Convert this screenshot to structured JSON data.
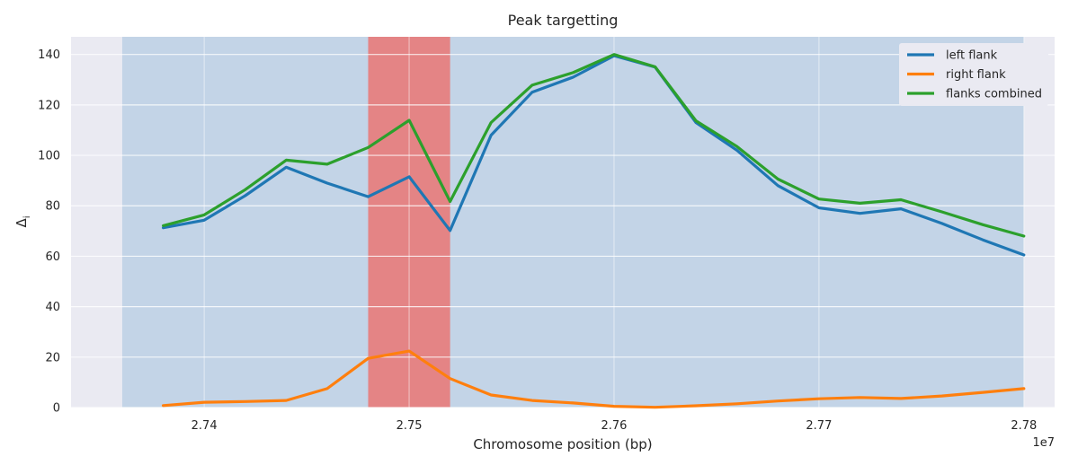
{
  "chart_data": {
    "type": "line",
    "title": "Peak targetting",
    "xlabel": "Chromosome position (bp)",
    "ylabel": "Δ",
    "ylabel_subscript": "i",
    "x_offset_text": "1e7",
    "xlim": [
      2.7335,
      2.7815
    ],
    "ylim": [
      0,
      147
    ],
    "x_ticks": [
      2.74,
      2.75,
      2.76,
      2.77,
      2.78
    ],
    "x_tick_labels": [
      "2.74",
      "2.75",
      "2.76",
      "2.77",
      "2.78"
    ],
    "y_ticks": [
      0,
      20,
      40,
      60,
      80,
      100,
      120,
      140
    ],
    "y_tick_labels": [
      "0",
      "20",
      "40",
      "60",
      "80",
      "100",
      "120",
      "140"
    ],
    "grid": true,
    "legend_position": "top-right",
    "regions": [
      {
        "x_start": 2.736,
        "x_end": 2.78,
        "color": "#a9c4e0",
        "opacity": 0.6
      },
      {
        "x_start": 2.748,
        "x_end": 2.752,
        "color": "#e68080",
        "opacity": 0.95
      }
    ],
    "x": [
      2.738,
      2.74,
      2.742,
      2.744,
      2.746,
      2.748,
      2.75,
      2.752,
      2.754,
      2.756,
      2.758,
      2.76,
      2.762,
      2.764,
      2.766,
      2.768,
      2.77,
      2.772,
      2.774,
      2.776,
      2.778,
      2.78
    ],
    "series": [
      {
        "name": "left flank",
        "color": "#1f77b4",
        "values": [
          71.3,
          74.3,
          84.0,
          95.3,
          89.0,
          83.6,
          91.5,
          70.2,
          108.0,
          125.0,
          131.0,
          139.5,
          135.0,
          113.0,
          102.0,
          88.0,
          79.2,
          77.0,
          78.8,
          73.0,
          66.5,
          60.5
        ]
      },
      {
        "name": "right flank",
        "color": "#ff7f0e",
        "values": [
          0.8,
          2.1,
          2.4,
          2.8,
          7.5,
          19.5,
          22.4,
          11.5,
          5.0,
          2.8,
          1.8,
          0.5,
          0.1,
          0.7,
          1.5,
          2.6,
          3.5,
          4.0,
          3.6,
          4.6,
          6.0,
          7.5
        ]
      },
      {
        "name": "flanks combined",
        "color": "#2ca02c",
        "values": [
          72.1,
          76.4,
          86.4,
          98.1,
          96.5,
          103.1,
          113.9,
          81.7,
          113.0,
          127.8,
          132.8,
          140.0,
          135.1,
          113.7,
          103.5,
          90.6,
          82.7,
          81.0,
          82.4,
          77.6,
          72.5,
          68.0
        ]
      }
    ]
  }
}
